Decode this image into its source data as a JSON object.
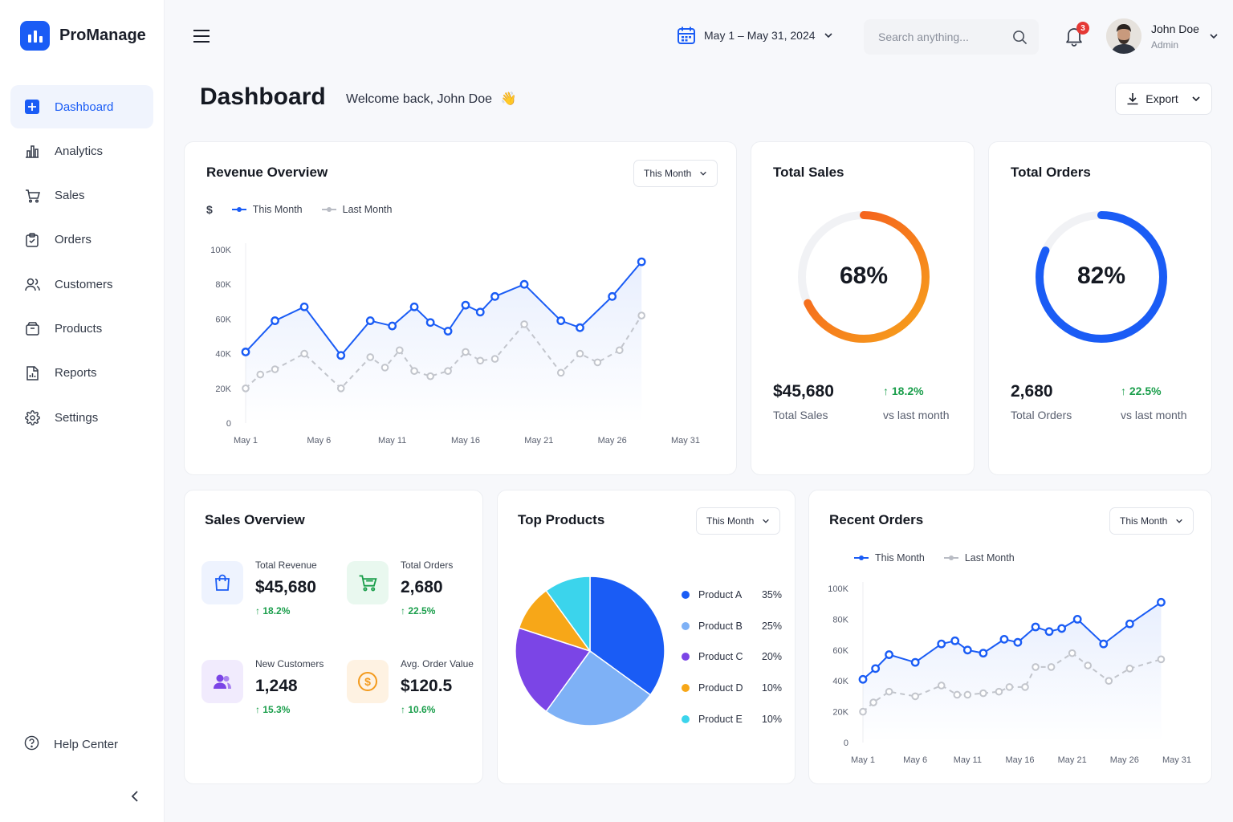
{
  "app": {
    "name": "ProManage"
  },
  "sidebar": {
    "items": [
      {
        "label": "Dashboard",
        "icon": "dashboard-icon",
        "active": true
      },
      {
        "label": "Analytics",
        "icon": "bar-chart-icon"
      },
      {
        "label": "Sales",
        "icon": "cart-icon"
      },
      {
        "label": "Orders",
        "icon": "clipboard-icon"
      },
      {
        "label": "Customers",
        "icon": "users-icon"
      },
      {
        "label": "Products",
        "icon": "box-icon"
      },
      {
        "label": "Reports",
        "icon": "report-icon"
      },
      {
        "label": "Settings",
        "icon": "gear-icon"
      }
    ],
    "help": "Help Center"
  },
  "header": {
    "date_range": "May 1 – May 31, 2024",
    "search_placeholder": "Search anything...",
    "notifications": "3",
    "user_name": "John Doe",
    "user_role": "Admin"
  },
  "page": {
    "title": "Dashboard",
    "welcome": "Welcome back, John Doe",
    "welcome_emoji": "👋",
    "export": "Export"
  },
  "revenue": {
    "title": "Revenue Overview",
    "filter": "This Month",
    "currency": "$",
    "legend_this": "This Month",
    "legend_last": "Last Month"
  },
  "total_sales": {
    "title": "Total Sales",
    "percent": "68%",
    "percent_value": 68,
    "value": "$45,680",
    "label": "Total Sales",
    "delta": "18.2%",
    "delta_label": "vs last month"
  },
  "total_orders": {
    "title": "Total Orders",
    "percent": "82%",
    "percent_value": 82,
    "value": "2,680",
    "label": "Total Orders",
    "delta": "22.5%",
    "delta_label": "vs last month"
  },
  "sales_overview": {
    "title": "Sales Overview",
    "stats": [
      {
        "label": "Total Revenue",
        "value": "$45,680",
        "delta": "18.2%",
        "icon": "shopping-bag-icon"
      },
      {
        "label": "Total Orders",
        "value": "2,680",
        "delta": "22.5%",
        "icon": "cart-icon"
      },
      {
        "label": "New Customers",
        "value": "1,248",
        "delta": "15.3%",
        "icon": "users-icon"
      },
      {
        "label": "Avg. Order Value",
        "value": "$120.5",
        "delta": "10.6%",
        "icon": "dollar-coin-icon"
      }
    ]
  },
  "top_products": {
    "title": "Top Products",
    "filter": "This Month",
    "items": [
      {
        "name": "Product A",
        "pct": "35%"
      },
      {
        "name": "Product B",
        "pct": "25%"
      },
      {
        "name": "Product C",
        "pct": "20%"
      },
      {
        "name": "Product D",
        "pct": "10%"
      },
      {
        "name": "Product E",
        "pct": "10%"
      }
    ]
  },
  "recent_orders": {
    "title": "Recent Orders",
    "filter": "This Month",
    "legend_this": "This Month",
    "legend_last": "Last Month"
  },
  "colors": {
    "accent": "#1a5cf5",
    "gray_series": "#c2c5cc",
    "orange_start": "#f7a21b",
    "orange_end": "#f4511e",
    "positive": "#1a9e4b"
  },
  "chart_data": [
    {
      "type": "line",
      "id": "revenue",
      "x_ticks": [
        "May 1",
        "May 6",
        "May 11",
        "May 16",
        "May 21",
        "May 26",
        "May 31"
      ],
      "y_ticks": [
        "0",
        "20K",
        "40K",
        "60K",
        "80K",
        "100K"
      ],
      "ylim": [
        0,
        100000
      ],
      "xlim": [
        1,
        31
      ],
      "series": [
        {
          "name": "This Month",
          "x": [
            1,
            3,
            5,
            7.5,
            9.5,
            11,
            12.5,
            13.6,
            14.8,
            16,
            17,
            18,
            20,
            22.5,
            23.8,
            26,
            28
          ],
          "values": [
            41000,
            59000,
            67000,
            39000,
            59000,
            56000,
            67000,
            58000,
            53000,
            68000,
            64000,
            73000,
            80000,
            59000,
            55000,
            73000,
            93000
          ]
        },
        {
          "name": "Last Month",
          "x": [
            1,
            2,
            3,
            5,
            7.5,
            9.5,
            10.5,
            11.5,
            12.5,
            13.6,
            14.8,
            16,
            17,
            18,
            20,
            22.5,
            23.8,
            25,
            26.5,
            28
          ],
          "values": [
            20000,
            28000,
            31000,
            40000,
            20000,
            38000,
            32000,
            42000,
            30000,
            27000,
            30000,
            41000,
            36000,
            37000,
            57000,
            29000,
            40000,
            35000,
            42000,
            62000
          ]
        }
      ]
    },
    {
      "type": "pie",
      "id": "top-products",
      "categories": [
        "Product A",
        "Product B",
        "Product C",
        "Product D",
        "Product E"
      ],
      "values": [
        35,
        25,
        20,
        10,
        10
      ],
      "colors": [
        "#1a5cf5",
        "#7eb1f6",
        "#7b45e6",
        "#f7a718",
        "#3bd4ec"
      ]
    },
    {
      "type": "line",
      "id": "recent-orders",
      "x_ticks": [
        "May 1",
        "May 6",
        "May 11",
        "May 16",
        "May 21",
        "May 26",
        "May 31"
      ],
      "y_ticks": [
        "0",
        "20K",
        "40K",
        "60K",
        "80K",
        "100K"
      ],
      "ylim": [
        0,
        100000
      ],
      "xlim": [
        1,
        31
      ],
      "series": [
        {
          "name": "This Month",
          "x": [
            1,
            2.2,
            3.5,
            6,
            8.5,
            9.8,
            11,
            12.5,
            14.5,
            15.8,
            17.5,
            18.8,
            20,
            21.5,
            24,
            26.5,
            29.5
          ],
          "values": [
            41000,
            48000,
            57000,
            52000,
            64000,
            66000,
            60000,
            58000,
            67000,
            65000,
            75000,
            72000,
            74000,
            80000,
            64000,
            77000,
            91000
          ]
        },
        {
          "name": "Last Month",
          "x": [
            1,
            2,
            3.5,
            6,
            8.5,
            10,
            11,
            12.5,
            14,
            15,
            16.5,
            17.5,
            19,
            21,
            22.5,
            24.5,
            26.5,
            29.5
          ],
          "values": [
            20000,
            26000,
            33000,
            30000,
            37000,
            31000,
            31000,
            32000,
            33000,
            36000,
            36000,
            49000,
            49000,
            58000,
            50000,
            40000,
            48000,
            54000
          ]
        }
      ]
    }
  ]
}
